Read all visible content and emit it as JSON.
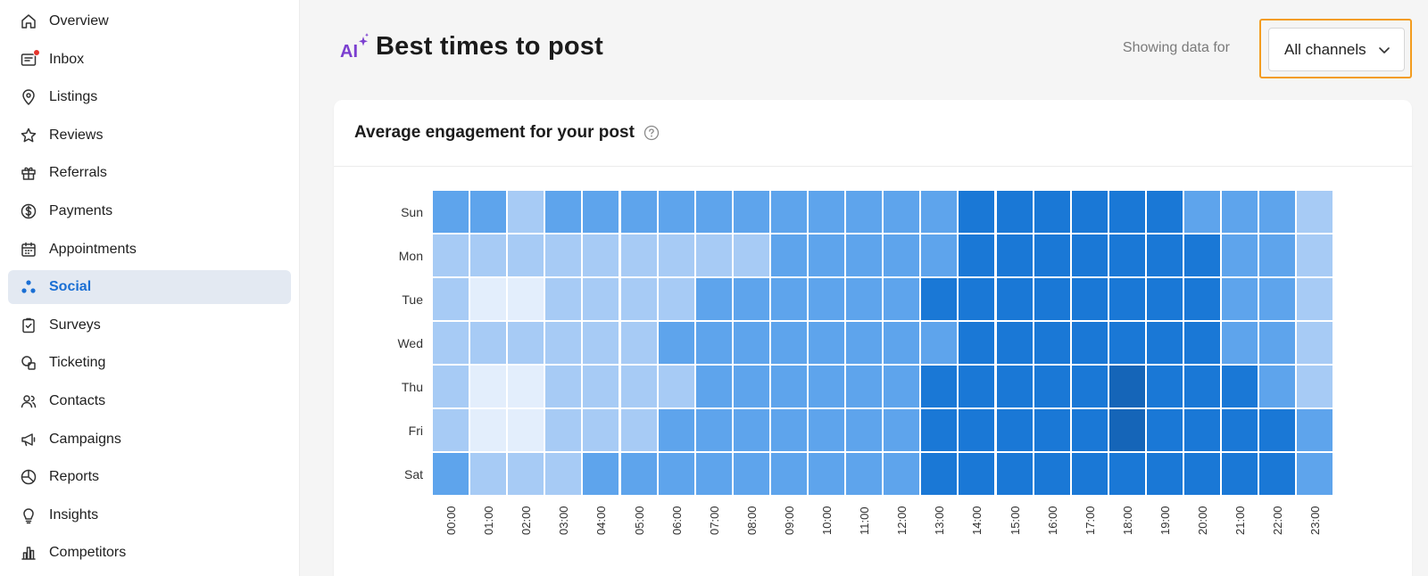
{
  "sidebar": {
    "items": [
      {
        "label": "Overview",
        "icon": "home-icon"
      },
      {
        "label": "Inbox",
        "icon": "inbox-icon",
        "badge": true
      },
      {
        "label": "Listings",
        "icon": "location-pin-icon"
      },
      {
        "label": "Reviews",
        "icon": "star-icon"
      },
      {
        "label": "Referrals",
        "icon": "gift-icon"
      },
      {
        "label": "Payments",
        "icon": "dollar-circle-icon"
      },
      {
        "label": "Appointments",
        "icon": "calendar-icon"
      },
      {
        "label": "Social",
        "icon": "social-dots-icon",
        "active": true
      },
      {
        "label": "Surveys",
        "icon": "clipboard-check-icon"
      },
      {
        "label": "Ticketing",
        "icon": "ticket-bubbles-icon"
      },
      {
        "label": "Contacts",
        "icon": "contacts-icon"
      },
      {
        "label": "Campaigns",
        "icon": "megaphone-icon"
      },
      {
        "label": "Reports",
        "icon": "pie-chart-icon"
      },
      {
        "label": "Insights",
        "icon": "lightbulb-icon"
      },
      {
        "label": "Competitors",
        "icon": "bar-chart-icon"
      }
    ]
  },
  "header": {
    "ai_badge": "AI",
    "title": "Best times to post",
    "showing_label": "Showing data for",
    "channel_value": "All channels"
  },
  "card": {
    "title": "Average engagement for your post"
  },
  "colors": {
    "accent": "#1a6fd4",
    "highlight_border": "#f39c1f",
    "level_1": "#e3eefc",
    "level_2": "#a7cbf5",
    "level_3": "#5ea4ec",
    "level_4": "#1a78d6",
    "level_5": "#1565b8"
  },
  "chart_data": {
    "type": "heatmap",
    "title": "Average engagement for your post",
    "rows": [
      "Sun",
      "Mon",
      "Tue",
      "Wed",
      "Thu",
      "Fri",
      "Sat"
    ],
    "columns": [
      "00:00",
      "01:00",
      "02:00",
      "03:00",
      "04:00",
      "05:00",
      "06:00",
      "07:00",
      "08:00",
      "09:00",
      "10:00",
      "11:00",
      "12:00",
      "13:00",
      "14:00",
      "15:00",
      "16:00",
      "17:00",
      "18:00",
      "19:00",
      "20:00",
      "21:00",
      "22:00",
      "23:00"
    ],
    "levels": [
      [
        3,
        3,
        2,
        3,
        3,
        3,
        3,
        3,
        3,
        3,
        3,
        3,
        3,
        3,
        4,
        4,
        4,
        4,
        4,
        4,
        3,
        3,
        3,
        2
      ],
      [
        2,
        2,
        2,
        2,
        2,
        2,
        2,
        2,
        2,
        3,
        3,
        3,
        3,
        3,
        4,
        4,
        4,
        4,
        4,
        4,
        4,
        3,
        3,
        2
      ],
      [
        2,
        1,
        1,
        2,
        2,
        2,
        2,
        3,
        3,
        3,
        3,
        3,
        3,
        4,
        4,
        4,
        4,
        4,
        4,
        4,
        4,
        3,
        3,
        2
      ],
      [
        2,
        2,
        2,
        2,
        2,
        2,
        3,
        3,
        3,
        3,
        3,
        3,
        3,
        3,
        4,
        4,
        4,
        4,
        4,
        4,
        4,
        3,
        3,
        2
      ],
      [
        2,
        1,
        1,
        2,
        2,
        2,
        2,
        3,
        3,
        3,
        3,
        3,
        3,
        4,
        4,
        4,
        4,
        4,
        5,
        4,
        4,
        4,
        3,
        2
      ],
      [
        2,
        1,
        1,
        2,
        2,
        2,
        3,
        3,
        3,
        3,
        3,
        3,
        3,
        4,
        4,
        4,
        4,
        4,
        5,
        4,
        4,
        4,
        4,
        3
      ],
      [
        3,
        2,
        2,
        2,
        3,
        3,
        3,
        3,
        3,
        3,
        3,
        3,
        3,
        4,
        4,
        4,
        4,
        4,
        4,
        4,
        4,
        4,
        4,
        3
      ]
    ]
  }
}
